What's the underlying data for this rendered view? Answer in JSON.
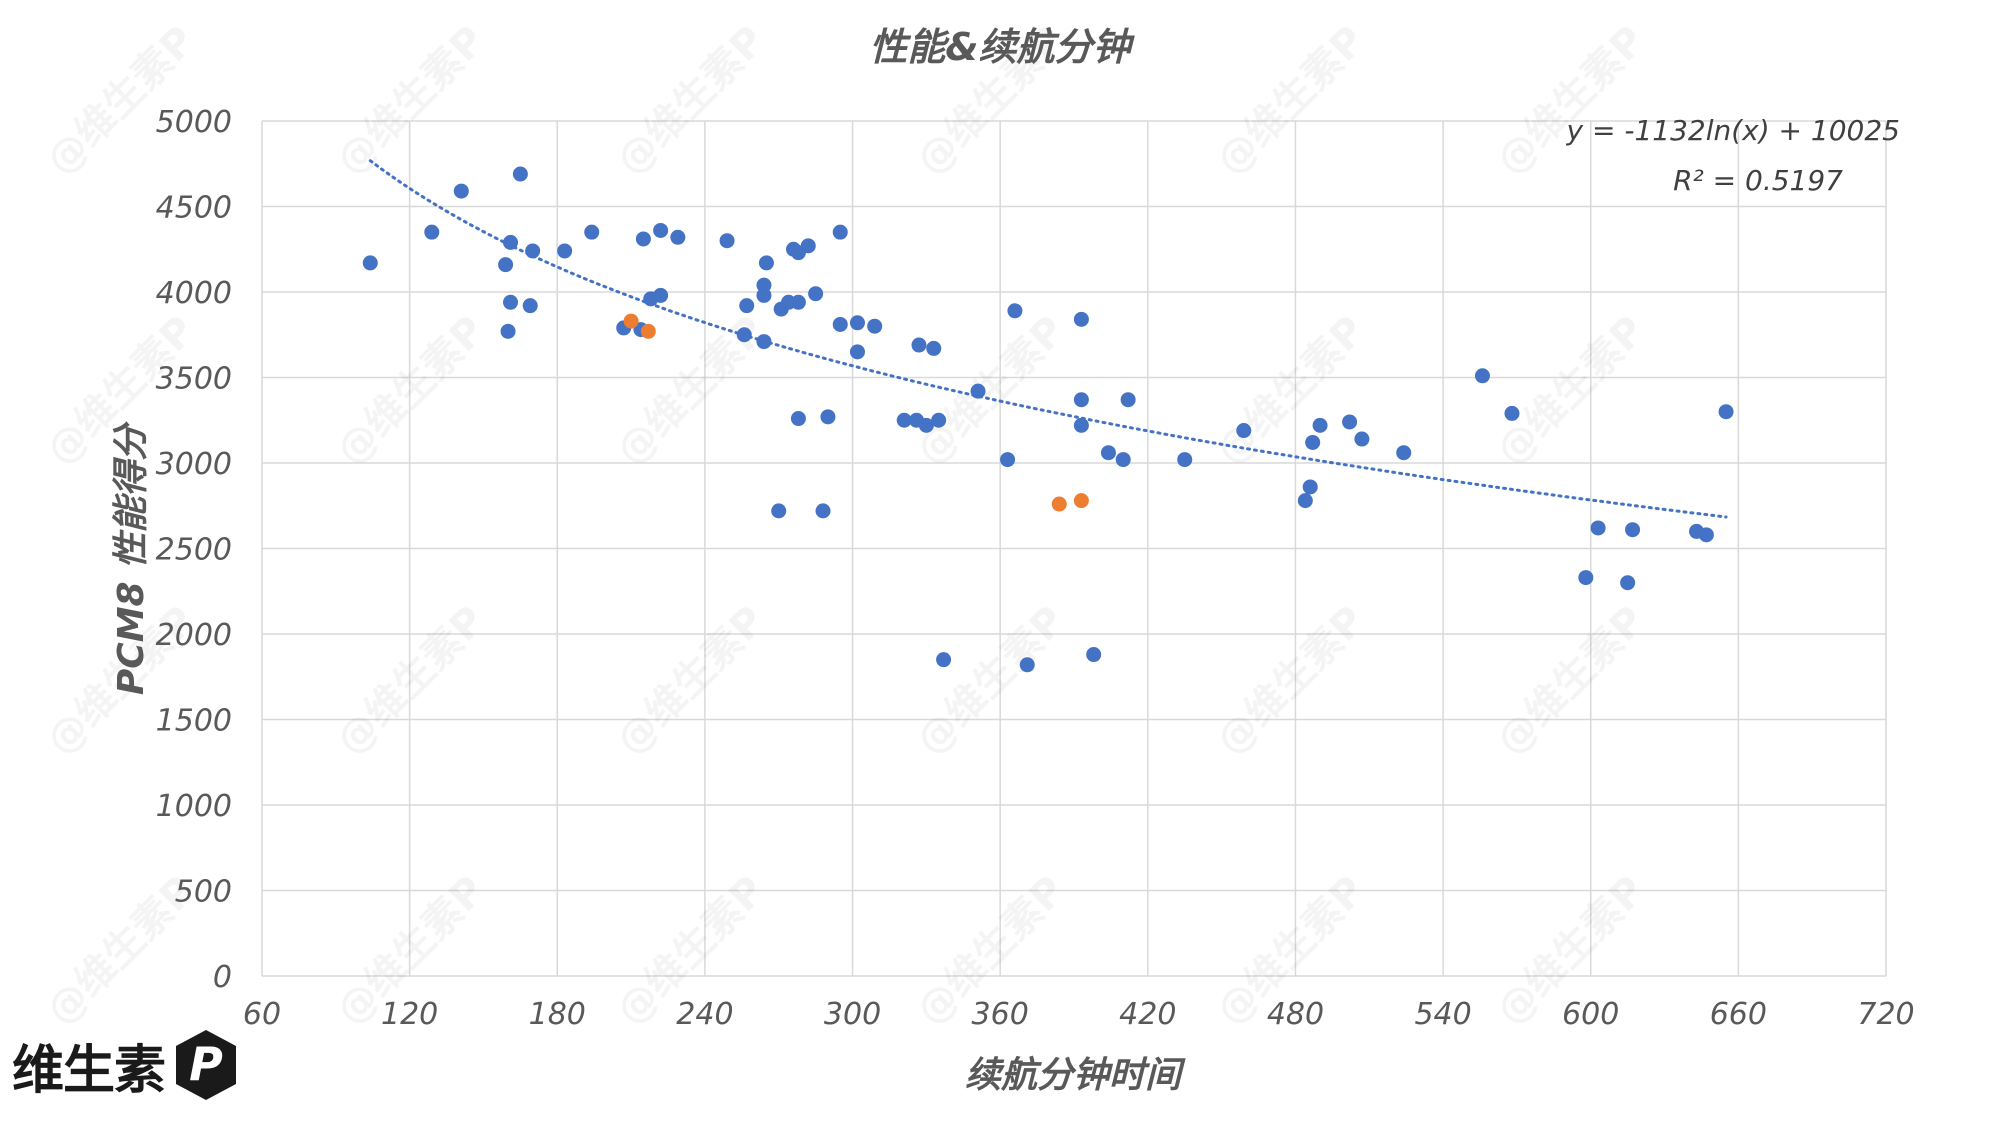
{
  "chart_data": {
    "type": "scatter",
    "title": "性能&续航分钟",
    "xlabel": "续航分钟时间",
    "ylabel": "PCM8 性能得分",
    "xlim": [
      60,
      720
    ],
    "ylim": [
      0,
      5000
    ],
    "xticks": [
      60,
      120,
      180,
      240,
      300,
      360,
      420,
      480,
      540,
      600,
      660,
      720
    ],
    "yticks": [
      0,
      500,
      1000,
      1500,
      2000,
      2500,
      3000,
      3500,
      4000,
      4500,
      5000
    ],
    "grid": true,
    "legend": "none",
    "colors": {
      "series1": "#4472c4",
      "series2": "#ed7d31",
      "trend": "#4472c4"
    },
    "series": [
      {
        "color": "#4472c4",
        "points": [
          [
            104,
            4170
          ],
          [
            129,
            4350
          ],
          [
            141,
            4590
          ],
          [
            159,
            4160
          ],
          [
            160,
            3770
          ],
          [
            161,
            4290
          ],
          [
            161,
            3940
          ],
          [
            165,
            4690
          ],
          [
            169,
            3920
          ],
          [
            170,
            4240
          ],
          [
            183,
            4240
          ],
          [
            194,
            4350
          ],
          [
            207,
            3790
          ],
          [
            214,
            3780
          ],
          [
            215,
            4310
          ],
          [
            218,
            3960
          ],
          [
            222,
            3980
          ],
          [
            222,
            4360
          ],
          [
            229,
            4320
          ],
          [
            249,
            4300
          ],
          [
            256,
            3750
          ],
          [
            257,
            3920
          ],
          [
            264,
            3710
          ],
          [
            264,
            4040
          ],
          [
            264,
            3980
          ],
          [
            265,
            4170
          ],
          [
            270,
            2720
          ],
          [
            271,
            3900
          ],
          [
            274,
            3940
          ],
          [
            276,
            4250
          ],
          [
            278,
            3940
          ],
          [
            278,
            4230
          ],
          [
            278,
            3260
          ],
          [
            282,
            4270
          ],
          [
            285,
            3990
          ],
          [
            288,
            2720
          ],
          [
            290,
            3270
          ],
          [
            295,
            3810
          ],
          [
            295,
            4350
          ],
          [
            302,
            3820
          ],
          [
            302,
            3650
          ],
          [
            309,
            3800
          ],
          [
            321,
            3250
          ],
          [
            326,
            3250
          ],
          [
            327,
            3690
          ],
          [
            330,
            3220
          ],
          [
            333,
            3670
          ],
          [
            335,
            3250
          ],
          [
            337,
            1850
          ],
          [
            351,
            3420
          ],
          [
            363,
            3020
          ],
          [
            366,
            3890
          ],
          [
            371,
            1820
          ],
          [
            393,
            3840
          ],
          [
            393,
            3370
          ],
          [
            393,
            3220
          ],
          [
            398,
            1880
          ],
          [
            404,
            3060
          ],
          [
            410,
            3020
          ],
          [
            412,
            3370
          ],
          [
            435,
            3020
          ],
          [
            459,
            3190
          ],
          [
            484,
            2780
          ],
          [
            486,
            2860
          ],
          [
            487,
            3120
          ],
          [
            490,
            3220
          ],
          [
            502,
            3240
          ],
          [
            507,
            3140
          ],
          [
            524,
            3060
          ],
          [
            556,
            3510
          ],
          [
            568,
            3290
          ],
          [
            598,
            2330
          ],
          [
            603,
            2620
          ],
          [
            615,
            2300
          ],
          [
            617,
            2610
          ],
          [
            643,
            2600
          ],
          [
            647,
            2580
          ],
          [
            655,
            3300
          ]
        ]
      },
      {
        "color": "#ed7d31",
        "points": [
          [
            210,
            3830
          ],
          [
            217,
            3770
          ],
          [
            384,
            2760
          ],
          [
            393,
            2780
          ]
        ]
      }
    ],
    "trendline": {
      "type": "logarithmic",
      "a": -1132,
      "b": 10025,
      "x_range": [
        104,
        655
      ],
      "style": "dotted",
      "equation": "y = -1132ln(x) + 10025",
      "r2": "R² = 0.5197"
    }
  },
  "watermark": "@维生素P",
  "logo": {
    "text": "维生素",
    "mark": "P"
  }
}
